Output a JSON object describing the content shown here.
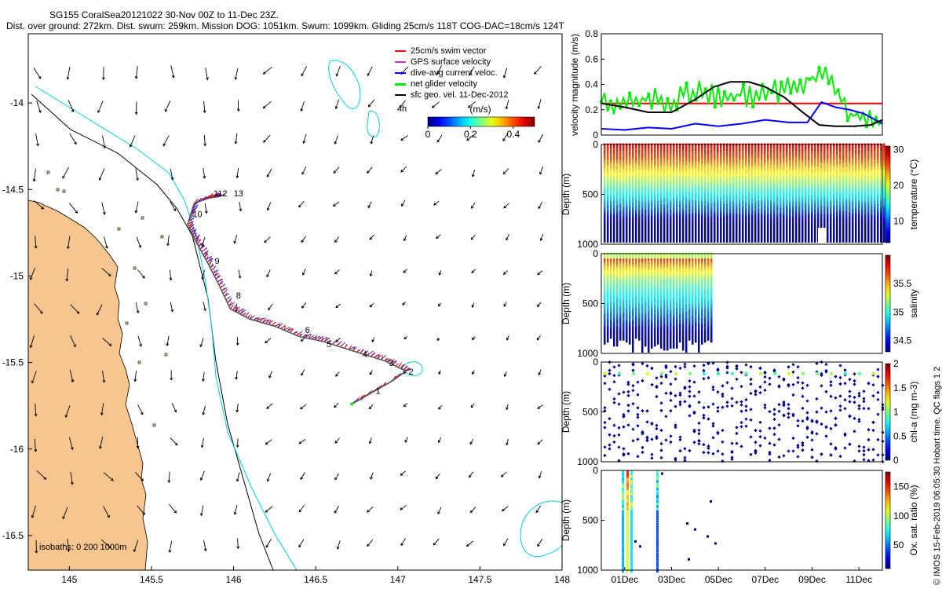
{
  "header": {
    "line1": "SG155 CoralSea20121022 30-Nov 00Z to 11-Dec 23Z.",
    "line2": "Dist. over ground: 272km. Dist. swum: 259km. Mission DOG: 1051km. Swum: 1099km. Gliding 25cm/s 118T COG-DAC=18cm/s 124T"
  },
  "credit": "© IMOS 15-Feb-2019 06:05:30 Hobart time. QC flags 1  2",
  "colors": {
    "land": "#f7c58f",
    "swim": "#ff0000",
    "gps": "#cc33cc",
    "dac": "#0000ff",
    "net": "#00ee00",
    "geo": "#000000",
    "isobath": "#00d0e0"
  },
  "chart_data": [
    {
      "type": "map",
      "xticks": [
        "145",
        "145.5",
        "146",
        "146.5",
        "147",
        "147.5",
        "148"
      ],
      "yticks": [
        "-14",
        "-14.5",
        "-15",
        "-15.5",
        "-16",
        "-16.5"
      ],
      "xlim": [
        144.75,
        148
      ],
      "ylim": [
        -16.7,
        -13.6
      ],
      "isobaths_label": "isobaths: 0   200  1000m",
      "legend": [
        "25cm/s swim vector",
        "GPS surface velocity",
        "dive-avg current veloc.",
        "net glider velocity",
        "sfc geo. vel. 11-Dec-2012"
      ],
      "colorbar": {
        "label": "(m/s)",
        "ticks": [
          "0",
          "0.2",
          "0.4"
        ],
        "range": [
          0,
          0.5
        ]
      },
      "annotation_4h": "4h",
      "track": [
        {
          "lon": 146.72,
          "lat": -15.74
        },
        {
          "lon": 146.85,
          "lat": -15.67
        },
        {
          "lon": 146.96,
          "lat": -15.61
        },
        {
          "lon": 147.05,
          "lat": -15.55
        },
        {
          "lon": 146.92,
          "lat": -15.49
        },
        {
          "lon": 146.75,
          "lat": -15.44
        },
        {
          "lon": 146.55,
          "lat": -15.38
        },
        {
          "lon": 146.4,
          "lat": -15.35
        },
        {
          "lon": 146.25,
          "lat": -15.29
        },
        {
          "lon": 146.1,
          "lat": -15.25
        },
        {
          "lon": 145.98,
          "lat": -15.19
        },
        {
          "lon": 145.91,
          "lat": -15.05
        },
        {
          "lon": 145.84,
          "lat": -14.92
        },
        {
          "lon": 145.77,
          "lat": -14.8
        },
        {
          "lon": 145.72,
          "lat": -14.7
        },
        {
          "lon": 145.76,
          "lat": -14.58
        },
        {
          "lon": 145.85,
          "lat": -14.55
        },
        {
          "lon": 145.92,
          "lat": -14.54
        }
      ],
      "track_labels": [
        {
          "text": "1",
          "lon": 146.88,
          "lat": -15.68
        },
        {
          "text": "2",
          "lon": 147.08,
          "lat": -15.57
        },
        {
          "text": "3",
          "lon": 146.96,
          "lat": -15.52
        },
        {
          "text": "4",
          "lon": 146.8,
          "lat": -15.47
        },
        {
          "text": "5",
          "lon": 146.58,
          "lat": -15.41
        },
        {
          "text": "6",
          "lon": 146.45,
          "lat": -15.33
        },
        {
          "text": "8",
          "lon": 146.03,
          "lat": -15.13
        },
        {
          "text": "9",
          "lon": 145.9,
          "lat": -14.93
        },
        {
          "text": "10",
          "lon": 145.78,
          "lat": -14.66
        },
        {
          "text": "112",
          "lon": 145.92,
          "lat": -14.54
        },
        {
          "text": "13",
          "lon": 146.03,
          "lat": -14.54
        }
      ]
    },
    {
      "type": "line",
      "ylabel": "velocity magnitude (m/s)",
      "ylim": [
        0,
        0.8
      ],
      "yticks": [
        "0",
        "0.2",
        "0.4",
        "0.6",
        "0.8"
      ],
      "xlim": [
        30,
        42
      ],
      "reference_value": 0.25,
      "series": [
        {
          "color": "black",
          "x": [
            30,
            31,
            32,
            33,
            34,
            34.8,
            35.5,
            36.3,
            37,
            37.8,
            38.6,
            39.3,
            40,
            40.8,
            41.5,
            42
          ],
          "y": [
            0.25,
            0.22,
            0.18,
            0.18,
            0.28,
            0.38,
            0.42,
            0.42,
            0.38,
            0.3,
            0.18,
            0.08,
            0.07,
            0.07,
            0.08,
            0.12
          ]
        },
        {
          "color": "blue",
          "x": [
            30,
            31,
            32,
            33,
            34,
            35,
            36,
            37,
            38,
            38.8,
            39.4,
            40,
            40.6,
            41.2,
            42
          ],
          "y": [
            0.05,
            0.04,
            0.06,
            0.05,
            0.09,
            0.07,
            0.09,
            0.12,
            0.1,
            0.1,
            0.26,
            0.22,
            0.2,
            0.17,
            0.09
          ]
        },
        {
          "color": "green",
          "x": [
            30,
            30.7,
            31.4,
            32.1,
            32.8,
            33.5,
            34.2,
            34.9,
            35.6,
            36.3,
            37,
            37.7,
            38.4,
            39.1,
            39.8,
            40.5,
            41.2,
            42
          ],
          "y": [
            0.28,
            0.24,
            0.26,
            0.3,
            0.22,
            0.33,
            0.35,
            0.3,
            0.32,
            0.3,
            0.35,
            0.34,
            0.4,
            0.46,
            0.48,
            0.16,
            0.14,
            0.1
          ]
        }
      ]
    },
    {
      "type": "scatter",
      "ylabel": "Depth (m)",
      "yticks": [
        "0",
        "500",
        "1000"
      ],
      "ylim": [
        0,
        1000
      ],
      "xlim": [
        30,
        42
      ],
      "colorbar": {
        "label": "temperature (°C)",
        "ticks": [
          "10",
          "20",
          "30"
        ],
        "range": [
          4,
          31
        ]
      }
    },
    {
      "type": "scatter",
      "ylabel": "Depth (m)",
      "yticks": [
        "0",
        "500",
        "1000"
      ],
      "ylim": [
        0,
        1000
      ],
      "xlim": [
        30,
        42
      ],
      "colorbar": {
        "label": "salinity",
        "ticks": [
          "34.5",
          "35",
          "35.5"
        ],
        "range": [
          34.3,
          36
        ]
      }
    },
    {
      "type": "scatter",
      "ylabel": "Depth (m)",
      "yticks": [
        "0",
        "500",
        "1000"
      ],
      "ylim": [
        0,
        1000
      ],
      "xlim": [
        30,
        42
      ],
      "colorbar": {
        "label": "chl-a (mg m-3)",
        "ticks": [
          "0",
          "0.5",
          "1",
          "1.5",
          "2"
        ],
        "range": [
          0,
          2
        ]
      }
    },
    {
      "type": "scatter",
      "ylabel": "Depth (m)",
      "yticks": [
        "0",
        "500",
        "1000"
      ],
      "ylim": [
        0,
        1000
      ],
      "xlim": [
        30,
        42
      ],
      "xticks": [
        "01Dec",
        "03Dec",
        "05Dec",
        "07Dec",
        "09Dec",
        "11Dec"
      ],
      "colorbar": {
        "label": "Ox. sat. ratio (%)",
        "ticks": [
          "50",
          "100",
          "150"
        ],
        "range": [
          10,
          175
        ]
      }
    }
  ]
}
